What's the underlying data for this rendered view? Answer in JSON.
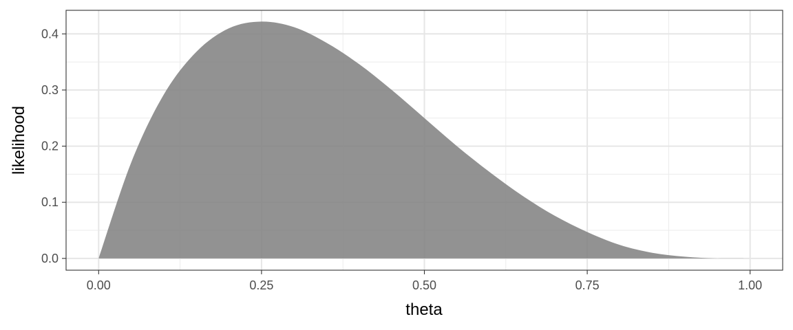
{
  "chart_data": {
    "type": "area",
    "title": "",
    "xlabel": "theta",
    "ylabel": "likelihood",
    "xlim": [
      -0.05,
      1.05
    ],
    "ylim": [
      -0.021,
      0.442
    ],
    "x_ticks": [
      0.0,
      0.25,
      0.5,
      0.75,
      1.0
    ],
    "x_tick_labels": [
      "0.00",
      "0.25",
      "0.50",
      "0.75",
      "1.00"
    ],
    "y_ticks": [
      0.0,
      0.1,
      0.2,
      0.3,
      0.4
    ],
    "y_tick_labels": [
      "0.0",
      "0.1",
      "0.2",
      "0.3",
      "0.4"
    ],
    "grid": true,
    "legend": "none",
    "fill_color": "#7f7f7f",
    "fill_opacity": 0.85,
    "series": [
      {
        "x": [
          0.0,
          0.05,
          0.1,
          0.15,
          0.2,
          0.25,
          0.3,
          0.35,
          0.4,
          0.45,
          0.5,
          0.55,
          0.6,
          0.65,
          0.7,
          0.75,
          0.8,
          0.85,
          0.9,
          0.95,
          1.0
        ],
        "y": [
          0.0,
          0.171,
          0.292,
          0.368,
          0.41,
          0.422,
          0.412,
          0.384,
          0.346,
          0.3,
          0.25,
          0.2,
          0.154,
          0.112,
          0.076,
          0.047,
          0.024,
          0.01,
          0.003,
          0.0,
          0.0
        ]
      }
    ]
  }
}
